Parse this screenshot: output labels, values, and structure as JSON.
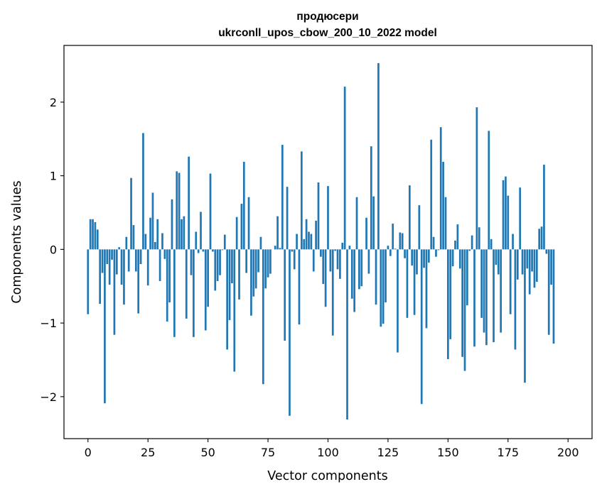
{
  "chart_data": {
    "type": "bar",
    "title": "продюсери",
    "subtitle": "ukrconll_upos_cbow_200_10_2022 model",
    "xlabel": "Vector components",
    "ylabel": "Components values",
    "xlim": [
      -10,
      210
    ],
    "ylim": [
      -2.57,
      2.77
    ],
    "xticks": [
      0,
      25,
      50,
      75,
      100,
      125,
      150,
      175,
      200
    ],
    "yticks": [
      -2,
      -1,
      0,
      1,
      2
    ],
    "ytick_labels": [
      "−2",
      "−1",
      "0",
      "1",
      "2"
    ],
    "bar_color": "#1f77b4",
    "grid": false,
    "values": [
      -0.88,
      0.41,
      0.41,
      0.37,
      0.27,
      -0.74,
      -0.32,
      -2.09,
      -0.2,
      -0.48,
      -0.14,
      -1.16,
      -0.34,
      0.03,
      -0.48,
      -0.75,
      0.17,
      -0.3,
      0.97,
      0.33,
      -0.3,
      -0.87,
      -0.2,
      1.58,
      0.21,
      -0.49,
      0.43,
      0.77,
      0.1,
      0.41,
      -0.43,
      0.22,
      -0.13,
      -0.98,
      -0.72,
      0.68,
      -1.19,
      1.06,
      1.04,
      0.41,
      0.45,
      -0.94,
      1.26,
      -0.35,
      -1.19,
      0.24,
      -0.05,
      0.51,
      -0.03,
      -1.1,
      -0.78,
      1.03,
      -0.03,
      -0.56,
      -0.43,
      -0.35,
      -0.01,
      0.2,
      -1.36,
      -0.96,
      -0.46,
      -1.66,
      0.44,
      -0.68,
      0.62,
      1.19,
      -0.32,
      0.71,
      -0.9,
      -0.64,
      -0.53,
      -0.31,
      0.17,
      -1.83,
      -0.53,
      -0.38,
      -0.33,
      0.0,
      0.05,
      0.45,
      0.02,
      1.42,
      -1.24,
      0.85,
      -2.26,
      -0.03,
      -0.27,
      0.21,
      -1.02,
      1.33,
      0.14,
      0.41,
      0.24,
      0.21,
      -0.3,
      0.39,
      0.91,
      -0.1,
      -0.47,
      -0.78,
      0.86,
      -0.3,
      -1.17,
      -0.02,
      -0.27,
      -0.4,
      0.09,
      2.21,
      -2.31,
      0.05,
      -0.67,
      -0.85,
      0.71,
      -0.54,
      -0.5,
      0.0,
      0.43,
      -0.33,
      1.4,
      0.72,
      -0.75,
      2.53,
      -1.05,
      -1.01,
      -0.72,
      0.05,
      -0.09,
      0.35,
      0.01,
      -1.4,
      0.23,
      0.22,
      -0.12,
      -0.93,
      0.87,
      -0.22,
      -0.89,
      -0.34,
      0.6,
      -2.1,
      -0.25,
      -1.07,
      -0.18,
      1.49,
      0.17,
      -0.1,
      -0.01,
      1.66,
      1.19,
      0.71,
      -1.49,
      -1.22,
      -0.23,
      0.12,
      0.34,
      -0.26,
      -1.46,
      -1.65,
      -0.76,
      -0.02,
      0.19,
      -1.32,
      1.93,
      0.3,
      -0.93,
      -1.13,
      -1.3,
      1.61,
      0.14,
      -1.26,
      -0.21,
      -0.34,
      -1.13,
      0.94,
      0.99,
      0.73,
      -0.88,
      0.21,
      -1.36,
      -0.41,
      0.84,
      -0.34,
      -1.81,
      -0.26,
      -0.61,
      -0.3,
      -0.52,
      -0.44,
      0.28,
      0.31,
      1.15,
      -0.06,
      -1.16,
      -0.48,
      -1.28
    ]
  }
}
